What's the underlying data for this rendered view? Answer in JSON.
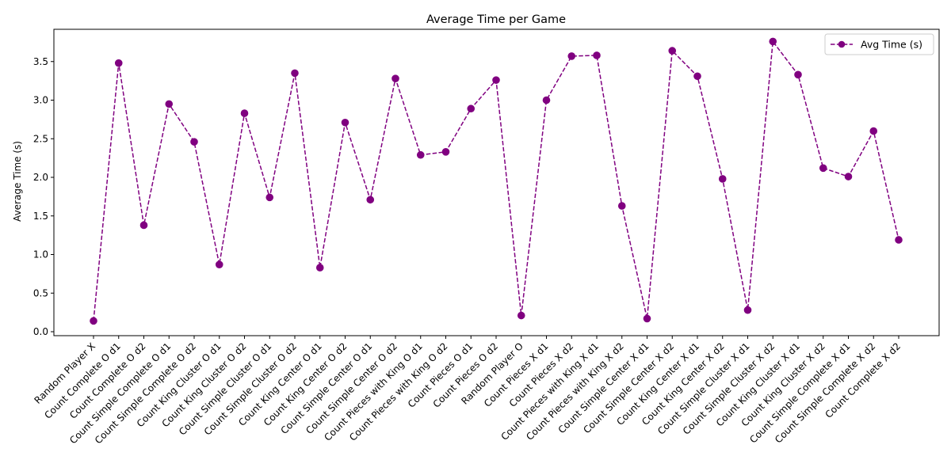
{
  "chart_data": {
    "type": "line",
    "title": "Average Time per Game",
    "xlabel": "",
    "ylabel": "Average Time (s)",
    "ylim": [
      -0.04,
      3.89
    ],
    "yticks": [
      "0.0",
      "0.5",
      "1.0",
      "1.5",
      "2.0",
      "2.5",
      "3.0",
      "3.5"
    ],
    "grid": false,
    "legend_position": "top-right",
    "categories": [
      "Random Player X",
      "Count Complete O d1",
      "Count Complete O d2",
      "Count Simple Complete O d1",
      "Count Simple Complete O d2",
      "Count King Cluster O d1",
      "Count King Cluster O d2",
      "Count Simple Cluster O d1",
      "Count Simple Cluster O d2",
      "Count King Center O d1",
      "Count King Center O d2",
      "Count Simple Center O d1",
      "Count Simple Center O d2",
      "Count Pieces with King O d1",
      "Count Pieces with King O d2",
      "Count Pieces O d1",
      "Count Pieces O d2",
      "Random Player O",
      "Count Pieces X d1",
      "Count Pieces X d2",
      "Count Pieces with King X d1",
      "Count Pieces with King X d2",
      "Count Simple Center X d1",
      "Count Simple Center X d2",
      "Count King Center X d1",
      "Count King Center X d2",
      "Count Simple Cluster X d1",
      "Count Simple Cluster X d2",
      "Count King Cluster X d1",
      "Count King Cluster X d2",
      "Count Simple Complete X d1",
      "Count Simple Complete X d2",
      "Count Complete X d2"
    ],
    "series": [
      {
        "name": "Avg Time (s)",
        "color": "#800080",
        "line_style": "dashed",
        "marker": "circle",
        "values": [
          0.14,
          3.48,
          1.38,
          2.95,
          2.46,
          0.87,
          2.83,
          1.74,
          3.35,
          0.83,
          2.71,
          1.71,
          3.28,
          2.29,
          2.33,
          2.89,
          3.26,
          0.21,
          3.0,
          3.57,
          3.58,
          1.63,
          0.17,
          3.64,
          3.31,
          1.98,
          0.28,
          3.76,
          3.33,
          2.12,
          2.01,
          2.6,
          1.19
        ]
      }
    ]
  }
}
